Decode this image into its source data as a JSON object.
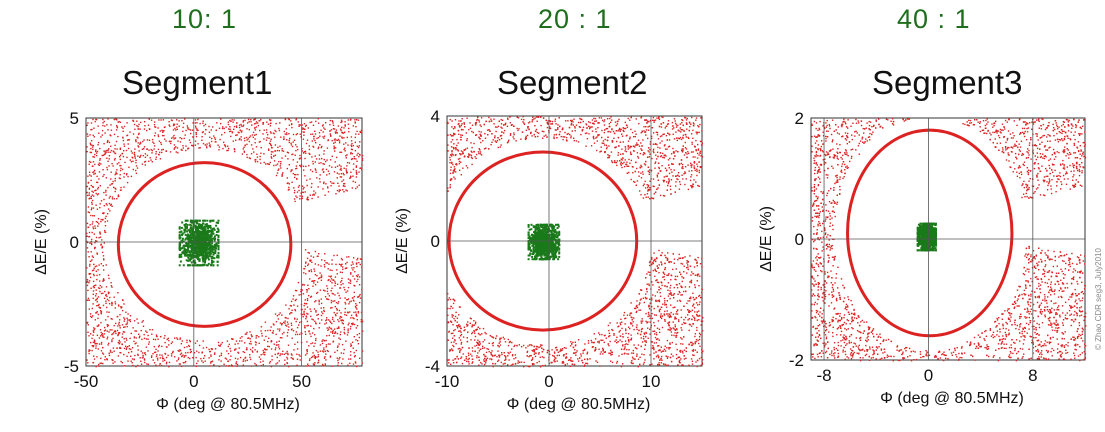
{
  "chart_data": [
    {
      "type": "scatter",
      "ratio_label": "10: 1",
      "title": "Segment1",
      "xlabel": "Φ (deg @ 80.5MHz)",
      "ylabel": "ΔE/E (%)",
      "xlim": [
        -50,
        78
      ],
      "ylim": [
        -5,
        5
      ],
      "xticks": [
        "-50",
        "0",
        "50"
      ],
      "yticks": [
        "5",
        "0",
        "-5"
      ],
      "xtick_values": [
        -50,
        0,
        50
      ],
      "ytick_values": [
        5,
        0,
        -5
      ],
      "grid": true,
      "series": [
        {
          "color": "#dd2222",
          "kind": "scattered particles outside separatrix"
        },
        {
          "color": "#dd2222",
          "kind": "separatrix ellipse",
          "center": [
            5,
            -0.1
          ],
          "half_widths": [
            40,
            3.3
          ]
        },
        {
          "color": "#1a7a1a",
          "kind": "bunch core",
          "center": [
            2,
            0
          ],
          "half_widths": [
            9,
            0.9
          ]
        }
      ]
    },
    {
      "type": "scatter",
      "ratio_label": "20 : 1",
      "title": "Segment2",
      "xlabel": "Φ (deg @ 80.5MHz)",
      "ylabel": "ΔE/E (%)",
      "xlim": [
        -10,
        15
      ],
      "ylim": [
        -4,
        4
      ],
      "xticks": [
        "-10",
        "0",
        "10"
      ],
      "yticks": [
        "4",
        "0",
        "-4"
      ],
      "xtick_values": [
        -10,
        0,
        10
      ],
      "ytick_values": [
        4,
        0,
        -4
      ],
      "grid": true,
      "series": [
        {
          "color": "#dd2222",
          "kind": "scattered particles outside separatrix"
        },
        {
          "color": "#dd2222",
          "kind": "separatrix ellipse",
          "center": [
            -0.6,
            0
          ],
          "half_widths": [
            9.2,
            2.85
          ]
        },
        {
          "color": "#1a7a1a",
          "kind": "bunch core",
          "center": [
            -0.6,
            0
          ],
          "half_widths": [
            1.5,
            0.55
          ]
        }
      ]
    },
    {
      "type": "scatter",
      "ratio_label": "40 : 1",
      "title": "Segment3",
      "xlabel": "Φ (deg @ 80.5MHz)",
      "ylabel": "ΔE/E (%)",
      "xlim": [
        -9,
        12
      ],
      "ylim": [
        -2,
        2
      ],
      "xticks": [
        "-8",
        "0",
        "8"
      ],
      "yticks": [
        "2",
        "0",
        "-2"
      ],
      "xtick_values": [
        -8,
        0,
        8
      ],
      "ytick_values": [
        2,
        0,
        -2
      ],
      "grid": true,
      "credit": "© Zhao CDR seg3, July2010",
      "series": [
        {
          "color": "#dd2222",
          "kind": "scattered particles outside separatrix"
        },
        {
          "color": "#dd2222",
          "kind": "separatrix ellipse",
          "center": [
            0.1,
            0.1
          ],
          "half_widths": [
            6.3,
            1.7
          ]
        },
        {
          "color": "#1a7a1a",
          "kind": "bunch core",
          "center": [
            -0.2,
            0.05
          ],
          "half_widths": [
            0.7,
            0.22
          ]
        }
      ]
    }
  ]
}
